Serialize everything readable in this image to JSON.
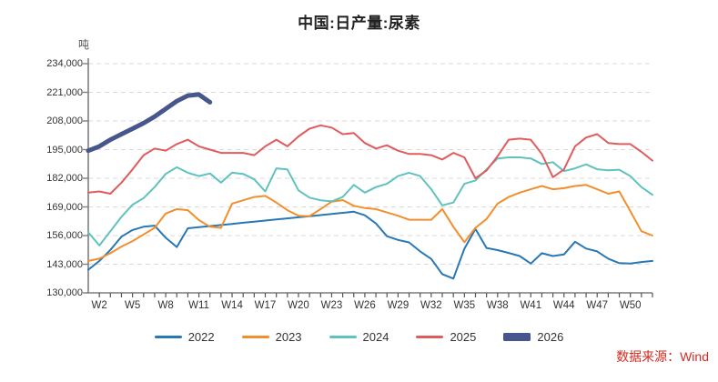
{
  "title": "中国:日产量:尿素",
  "unit_label": "吨",
  "source": "数据来源：Wind",
  "colors": {
    "title_text": "#222222",
    "axis_line": "#7f7f7f",
    "tick_text": "#333333",
    "gridline": "#d9d9d9",
    "source_text": "#d42a22",
    "background": "#ffffff"
  },
  "chart_data": {
    "type": "line",
    "title": "中国:日产量:尿素",
    "ylabel": "吨",
    "x_unit": "week-of-year",
    "weeks_range": [
      1,
      52
    ],
    "ylim": [
      130000,
      234000
    ],
    "grid": "horizontal-dashed",
    "legend_position": "bottom",
    "y_ticks": [
      130000,
      143000,
      156000,
      169000,
      182000,
      195000,
      208000,
      221000,
      234000
    ],
    "y_tick_labels": [
      "130,000",
      "143,000",
      "156,000",
      "169,000",
      "182,000",
      "195,000",
      "208,000",
      "221,000",
      "234,000"
    ],
    "x_tick_weeks": [
      2,
      5,
      8,
      11,
      14,
      17,
      20,
      23,
      26,
      29,
      32,
      35,
      38,
      41,
      44,
      47,
      50
    ],
    "x_tick_labels": [
      "W2",
      "W5",
      "W8",
      "W11",
      "W14",
      "W17",
      "W20",
      "W23",
      "W26",
      "W29",
      "W32",
      "W35",
      "W38",
      "W41",
      "W44",
      "W47",
      "W50"
    ],
    "series": [
      {
        "name": "2022",
        "color": "#2878b5",
        "line_width": 2,
        "start_week": 1,
        "values": [
          140500,
          144500,
          149500,
          155500,
          158500,
          160000,
          160500,
          155000,
          150800,
          159300,
          159800,
          160300,
          160800,
          161300,
          161800,
          162300,
          162800,
          163300,
          163800,
          164300,
          164800,
          165300,
          165800,
          166300,
          166800,
          165200,
          161500,
          155700,
          154000,
          152900,
          148800,
          145400,
          138500,
          136500,
          150000,
          159000,
          150400,
          149400,
          148100,
          146700,
          143300,
          148000,
          146700,
          147400,
          153200,
          150100,
          148800,
          145500,
          143500,
          143300,
          144000,
          144500
        ]
      },
      {
        "name": "2023",
        "color": "#f28e2c",
        "line_width": 2,
        "start_week": 1,
        "values": [
          144500,
          145500,
          148000,
          151000,
          153500,
          156500,
          159500,
          166000,
          168000,
          167500,
          163000,
          160000,
          159500,
          170500,
          172000,
          173500,
          174000,
          171000,
          167500,
          165000,
          164800,
          168000,
          171400,
          172100,
          169500,
          168500,
          168000,
          166500,
          165000,
          163200,
          163200,
          163200,
          168000,
          160000,
          153000,
          159500,
          163500,
          170500,
          173500,
          175500,
          177000,
          178500,
          177000,
          177500,
          178500,
          179000,
          177000,
          175000,
          176000,
          167000,
          158000,
          156000
        ]
      },
      {
        "name": "2024",
        "color": "#5fc2bf",
        "line_width": 2,
        "start_week": 1,
        "values": [
          157500,
          151500,
          158000,
          164500,
          170000,
          173000,
          178000,
          184000,
          187000,
          184500,
          183000,
          184200,
          180000,
          184500,
          184000,
          181500,
          176000,
          186500,
          186000,
          176500,
          173200,
          172000,
          171500,
          173500,
          179000,
          175500,
          178000,
          179500,
          183000,
          184500,
          183000,
          177000,
          169700,
          171000,
          179500,
          181000,
          186000,
          191000,
          191500,
          191500,
          191000,
          188500,
          189300,
          185200,
          186500,
          188300,
          186100,
          185600,
          185900,
          183000,
          178000,
          174500
        ]
      },
      {
        "name": "2025",
        "color": "#e05c5c",
        "line_width": 2,
        "start_week": 1,
        "values": [
          175500,
          176000,
          175000,
          180000,
          186000,
          192500,
          195500,
          194500,
          197500,
          199500,
          196500,
          195000,
          193500,
          193500,
          193500,
          192500,
          196500,
          199500,
          196500,
          201000,
          204500,
          206000,
          205000,
          202000,
          202500,
          198000,
          195500,
          197000,
          194500,
          193000,
          193000,
          192500,
          190500,
          193500,
          191500,
          182000,
          185500,
          192000,
          199500,
          200000,
          199500,
          193000,
          182500,
          186000,
          196500,
          200500,
          202000,
          198000,
          197500,
          197500,
          194000,
          190000
        ]
      },
      {
        "name": "2026",
        "color": "#47568c",
        "line_width": 5,
        "start_week": 1,
        "values": [
          194500,
          196500,
          199500,
          202000,
          204500,
          207000,
          210000,
          213500,
          217000,
          219500,
          220000,
          216500
        ]
      }
    ]
  }
}
